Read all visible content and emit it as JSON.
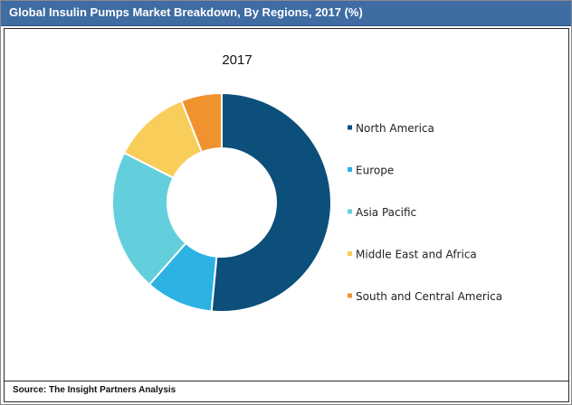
{
  "header": {
    "title": "Global Insulin Pumps Market Breakdown, By Regions, 2017 (%)"
  },
  "footer": {
    "source": "Source: The Insight Partners Analysis"
  },
  "colors": {
    "header_bg": "#3e6ca3",
    "north_america": "#0b4f7a",
    "europe": "#2cb3e4",
    "asia_pacific": "#63cfdc",
    "middle_east_africa": "#f9cd5a",
    "south_central_america": "#f0922e"
  },
  "chart_data": {
    "type": "pie",
    "variant": "donut",
    "title": "2017",
    "legend_position": "right",
    "series": [
      {
        "name": "North America",
        "value": 51.5,
        "color": "#0b4f7a"
      },
      {
        "name": "Europe",
        "value": 10.0,
        "color": "#2cb3e4"
      },
      {
        "name": "Asia Pacific",
        "value": 21.0,
        "color": "#63cfdc"
      },
      {
        "name": "Middle East and Africa",
        "value": 11.5,
        "color": "#f9cd5a"
      },
      {
        "name": "South and Central America",
        "value": 6.0,
        "color": "#f0922e"
      }
    ]
  }
}
